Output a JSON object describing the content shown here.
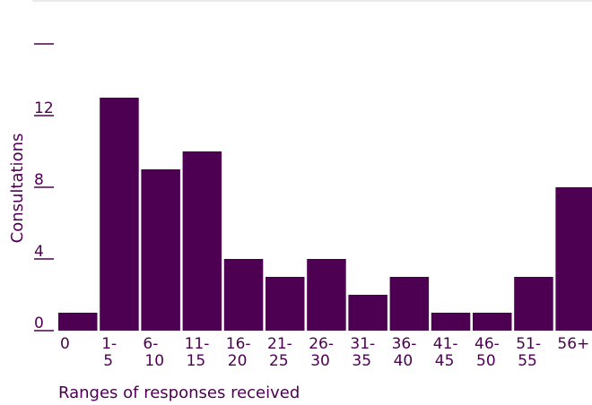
{
  "chart_data": {
    "type": "bar",
    "ylabel": "Consultations",
    "xlabel": "Ranges of responses received",
    "categories": [
      [
        "0"
      ],
      [
        "1-",
        "5"
      ],
      [
        "6-",
        "10"
      ],
      [
        "11-",
        "15"
      ],
      [
        "16-",
        "20"
      ],
      [
        "21-",
        "25"
      ],
      [
        "26-",
        "30"
      ],
      [
        "31-",
        "35"
      ],
      [
        "36-",
        "40"
      ],
      [
        "41-",
        "45"
      ],
      [
        "46-",
        "50"
      ],
      [
        "51-",
        "55"
      ],
      [
        "56+"
      ]
    ],
    "values": [
      1,
      13,
      9,
      10,
      4,
      3,
      4,
      2,
      3,
      1,
      1,
      3,
      8
    ],
    "ylim": [
      0,
      16
    ],
    "yticks": [
      {
        "value": 0,
        "label": "0"
      },
      {
        "value": 4,
        "label": "4"
      },
      {
        "value": 8,
        "label": "8"
      },
      {
        "value": 12,
        "label": "12"
      },
      {
        "value": 16,
        "label": ""
      }
    ],
    "grid": false,
    "legend": "none",
    "colors": {
      "bar": "#4d0052",
      "text": "#4d0052",
      "rule": "#d9d2da"
    }
  }
}
